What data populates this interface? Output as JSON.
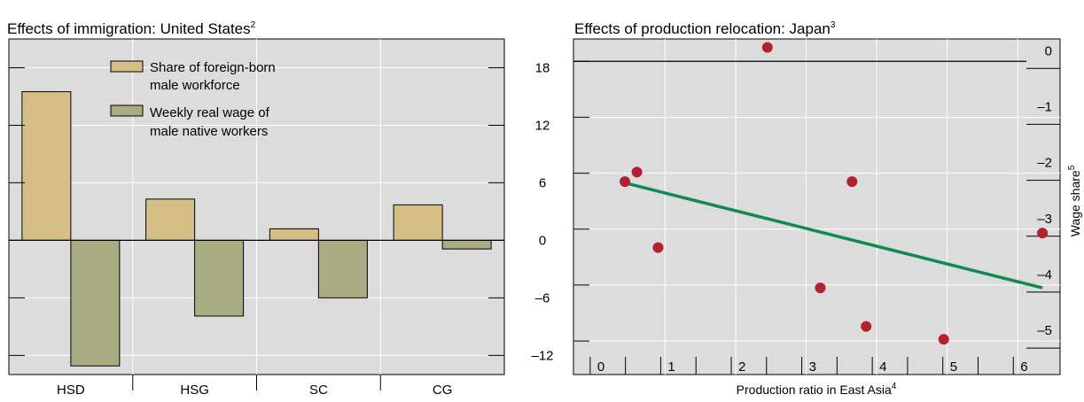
{
  "colors": {
    "panel_bg": "#dcdcdc",
    "grid": "#ffffff",
    "bar_series_1": "#d6bf86",
    "bar_series_2": "#a9ac82",
    "scatter_point": "#b3212f",
    "trend_line": "#128a4f"
  },
  "chart_data": [
    {
      "type": "bar",
      "title": "Effects of immigration: United States",
      "title_sup": "2",
      "categories": [
        "HSD",
        "HSG",
        "SC",
        "CG"
      ],
      "series": [
        {
          "name": "Share of foreign-born male workforce",
          "legend_lines": [
            "Share of foreign-born",
            "male workforce"
          ],
          "values": [
            15.5,
            4.3,
            1.2,
            3.7
          ]
        },
        {
          "name": "Weekly real wage of male native workers",
          "legend_lines": [
            "Weekly real wage of",
            "male native workers"
          ],
          "values": [
            -13.1,
            -7.9,
            -6.0,
            -0.9
          ]
        }
      ],
      "ylim": [
        -14,
        21
      ],
      "yticks": [
        -12,
        -6,
        0,
        6,
        12,
        18
      ],
      "ytick_labels": [
        "–12",
        "–6",
        "0",
        "6",
        "12",
        "18"
      ],
      "grid": true,
      "legend_position": "top"
    },
    {
      "type": "scatter",
      "title": "Effects of production relocation: Japan",
      "title_sup": "3",
      "xlabel": "Production ratio in East Asia",
      "xlabel_sup": "4",
      "ylabel": "Wage share",
      "ylabel_sup": "5",
      "xlim": [
        -0.3,
        6.6
      ],
      "ylim": [
        -5.6,
        0.4
      ],
      "xticks": [
        0,
        1,
        2,
        3,
        4,
        5,
        6
      ],
      "xtick_labels": [
        "0",
        "1",
        "2",
        "3",
        "4",
        "5",
        "6"
      ],
      "yticks": [
        0,
        -1,
        -2,
        -3,
        -4,
        -5
      ],
      "ytick_labels": [
        "0",
        "–1",
        "–2",
        "–3",
        "–4",
        "–5"
      ],
      "grid": true,
      "points": [
        {
          "x": 0.43,
          "y": -2.15
        },
        {
          "x": 0.6,
          "y": -1.98
        },
        {
          "x": 0.9,
          "y": -3.33
        },
        {
          "x": 2.45,
          "y": 0.25
        },
        {
          "x": 3.2,
          "y": -4.05
        },
        {
          "x": 3.65,
          "y": -2.15
        },
        {
          "x": 3.85,
          "y": -4.74
        },
        {
          "x": 4.95,
          "y": -4.97
        },
        {
          "x": 6.35,
          "y": -3.07
        }
      ],
      "trend_line": {
        "x": [
          0.45,
          6.35
        ],
        "y": [
          -2.18,
          -4.05
        ]
      }
    }
  ]
}
